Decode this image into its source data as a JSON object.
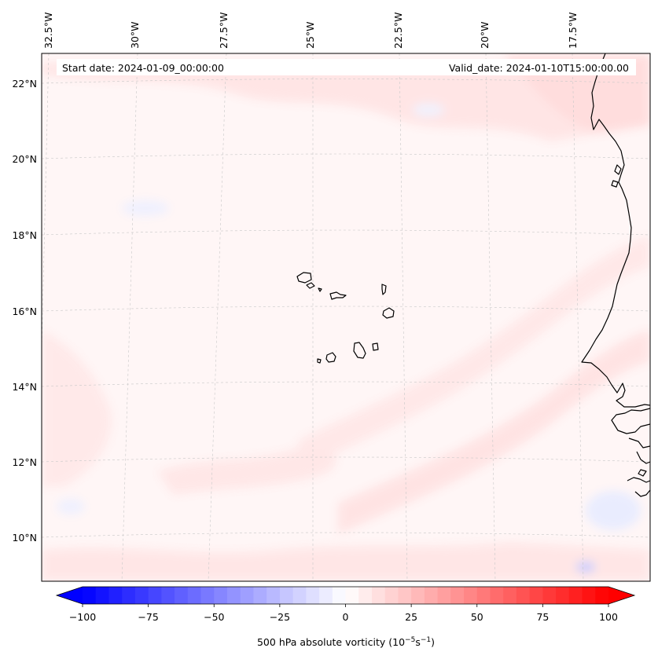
{
  "map": {
    "start_date": "Start date: 2024-01-09_00:00:00",
    "valid_date": "Valid_date: 2024-01-10T15:00:00.00",
    "lon_labels": [
      "32.5°W",
      "30°W",
      "27.5°W",
      "25°W",
      "22.5°W",
      "20°W",
      "17.5°W"
    ],
    "lat_labels": [
      "22°N",
      "20°N",
      "18°N",
      "16°N",
      "14°N",
      "12°N",
      "10°N"
    ],
    "field_colors": {
      "background": "#fff6f6",
      "light_red": "#ffe6e6",
      "light_blue": "#eef0ff",
      "coast": "#000000"
    }
  },
  "colorbar": {
    "ticks": [
      "−100",
      "−75",
      "−50",
      "−25",
      "0",
      "25",
      "50",
      "75",
      "100"
    ],
    "label_main": "500 hPa absolute vorticity (10",
    "label_exp1": "−5",
    "label_mid": "s",
    "label_exp2": "−1",
    "label_end": ")",
    "vmin": -100,
    "vmax": 100,
    "levels": 41,
    "colormap": "bwr"
  }
}
